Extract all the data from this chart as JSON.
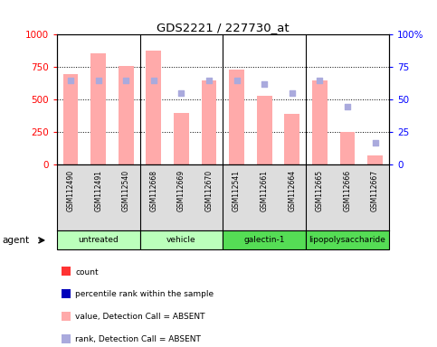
{
  "title": "GDS2221 / 227730_at",
  "samples": [
    "GSM112490",
    "GSM112491",
    "GSM112540",
    "GSM112668",
    "GSM112669",
    "GSM112670",
    "GSM112541",
    "GSM112661",
    "GSM112664",
    "GSM112665",
    "GSM112666",
    "GSM112667"
  ],
  "groups": [
    {
      "label": "untreated",
      "n": 3,
      "color": "#bbffbb"
    },
    {
      "label": "vehicle",
      "n": 3,
      "color": "#bbffbb"
    },
    {
      "label": "galectin-1",
      "n": 3,
      "color": "#55dd55"
    },
    {
      "label": "lipopolysaccharide",
      "n": 3,
      "color": "#55dd55"
    }
  ],
  "bar_values": [
    700,
    860,
    760,
    880,
    400,
    650,
    730,
    530,
    390,
    650,
    250,
    70
  ],
  "rank_values": [
    65,
    65,
    65,
    65,
    55,
    65,
    65,
    62,
    55,
    65,
    45,
    17
  ],
  "ylim_left": [
    0,
    1000
  ],
  "ylim_right": [
    0,
    100
  ],
  "yticks_left": [
    0,
    250,
    500,
    750,
    1000
  ],
  "yticks_right": [
    0,
    25,
    50,
    75,
    100
  ],
  "bar_color_absent": "#ffaaaa",
  "rank_color_absent": "#aaaadd",
  "legend_items": [
    {
      "label": "count",
      "color": "#ff3333"
    },
    {
      "label": "percentile rank within the sample",
      "color": "#0000bb"
    },
    {
      "label": "value, Detection Call = ABSENT",
      "color": "#ffaaaa"
    },
    {
      "label": "rank, Detection Call = ABSENT",
      "color": "#aaaadd"
    }
  ]
}
